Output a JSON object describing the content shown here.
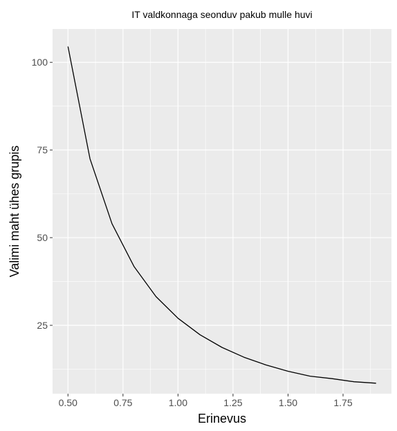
{
  "chart_data": {
    "type": "line",
    "title": "IT valdkonnaga seonduv pakub mulle huvi",
    "xlabel": "Erinevus",
    "ylabel": "Valimi maht ühes grupis",
    "xlim": [
      0.43,
      1.97
    ],
    "ylim": [
      5.5,
      109.5
    ],
    "x_ticks": [
      0.5,
      0.75,
      1.0,
      1.25,
      1.5,
      1.75
    ],
    "x_tick_labels": [
      "0.50",
      "0.75",
      "1.00",
      "1.25",
      "1.50",
      "1.75"
    ],
    "y_ticks": [
      25,
      50,
      75,
      100
    ],
    "y_tick_labels": [
      "25",
      "50",
      "75",
      "100"
    ],
    "grid": true,
    "background": "#ebebeb",
    "grid_color": "#ffffff",
    "line_color": "#000000",
    "series": [
      {
        "x": [
          0.5,
          0.6,
          0.7,
          0.8,
          0.9,
          1.0,
          1.1,
          1.2,
          1.3,
          1.4,
          1.5,
          1.6,
          1.7,
          1.8,
          1.9
        ],
        "y": [
          104.5,
          72.5,
          54,
          41.8,
          33.2,
          27,
          22.3,
          18.7,
          15.9,
          13.7,
          11.9,
          10.5,
          9.8,
          8.9,
          8.5
        ]
      }
    ]
  }
}
